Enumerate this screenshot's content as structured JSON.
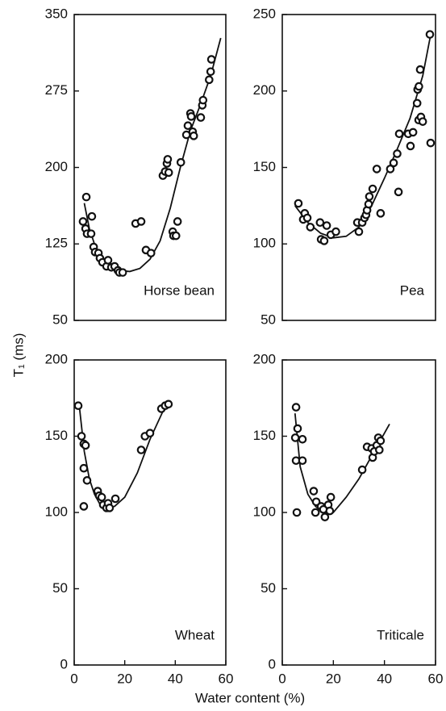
{
  "xlabel": "Water content (%)",
  "ylabel": "T₁ (ms)",
  "chart_data": [
    {
      "type": "scatter",
      "annotation": "Horse bean",
      "color": "#111",
      "xlim": [
        0,
        60
      ],
      "ylim": [
        50,
        350
      ],
      "yticks": [
        50,
        125,
        200,
        275,
        350
      ],
      "x": [
        4.8,
        3.5,
        4.5,
        5.1,
        7,
        6.7,
        7.7,
        8.3,
        9.6,
        10.2,
        11.2,
        12.8,
        13.4,
        14.7,
        16,
        17.3,
        17.9,
        19.2,
        24.3,
        26.5,
        28.4,
        30.4,
        35.1,
        36,
        36.7,
        37,
        37.4,
        39,
        39.3,
        40.3,
        40.9,
        42.2,
        44.4,
        45,
        46,
        46.3,
        46.9,
        47.3,
        50.1,
        50.7,
        51,
        53.4,
        54,
        54.3
      ],
      "y": [
        171,
        147,
        140,
        135,
        152,
        135,
        122,
        117,
        116,
        111,
        107,
        103,
        109,
        102,
        103,
        99,
        97,
        97,
        145,
        147,
        119,
        116,
        192,
        196,
        204,
        208,
        195,
        137,
        133,
        133,
        147,
        205,
        232,
        241,
        253,
        250,
        235,
        231,
        249,
        261,
        266,
        286,
        294,
        306
      ],
      "fit": {
        "x": [
          4,
          6,
          8,
          10,
          14,
          18,
          22,
          26,
          30,
          34,
          38,
          42,
          46,
          50,
          54,
          58
        ],
        "y": [
          165,
          140,
          125,
          115,
          104,
          99,
          98,
          101,
          110,
          128,
          160,
          200,
          236,
          262,
          290,
          327
        ]
      }
    },
    {
      "type": "scatter",
      "annotation": "Pea",
      "color": "#111",
      "xlim": [
        0,
        60
      ],
      "ylim": [
        50,
        250
      ],
      "yticks": [
        50,
        100,
        150,
        200,
        250
      ],
      "x": [
        6.3,
        8.2,
        8.8,
        9.8,
        11,
        14.8,
        15.2,
        16.4,
        17.4,
        19,
        21,
        29.4,
        30,
        31.3,
        32.2,
        32.8,
        33.2,
        33.8,
        34.1,
        35.4,
        37,
        38.5,
        42.3,
        43.6,
        45,
        45.5,
        45.8,
        49.3,
        50.2,
        51.2,
        52.8,
        53,
        53.5,
        54,
        53.4,
        54.3,
        55,
        58.1,
        57.8
      ],
      "y": [
        126.5,
        116,
        120,
        117,
        111,
        114,
        103,
        102,
        112,
        106,
        108,
        114,
        108,
        114,
        117,
        119,
        122,
        126,
        131,
        136,
        149,
        120,
        149,
        153,
        159,
        134,
        172,
        172,
        164,
        173,
        192,
        201,
        203,
        214,
        181,
        183,
        180,
        166,
        237
      ],
      "fit": {
        "x": [
          5,
          10,
          15,
          20,
          25,
          30,
          35,
          40,
          45,
          50,
          55,
          58
        ],
        "y": [
          125,
          114,
          107,
          104,
          105,
          111,
          125,
          143,
          162,
          182,
          210,
          236
        ]
      }
    },
    {
      "type": "scatter",
      "annotation": "Wheat",
      "color": "#111",
      "xlim": [
        0,
        60
      ],
      "ylim": [
        0,
        200
      ],
      "yticks": [
        0,
        50,
        100,
        150,
        200
      ],
      "xticks": [
        0,
        20,
        40,
        60
      ],
      "x": [
        1.6,
        2.9,
        3.8,
        4.5,
        3.8,
        5.1,
        3.8,
        9.3,
        9.9,
        10.9,
        11.5,
        12.8,
        13.4,
        14,
        16.3,
        26.5,
        28,
        30,
        34.5,
        36,
        37.3
      ],
      "y": [
        170,
        150,
        145,
        144,
        129,
        121,
        104,
        114,
        111,
        110,
        105,
        103,
        106,
        103,
        109,
        141,
        150,
        152,
        168,
        170,
        171
      ],
      "fit": {
        "x": [
          2,
          4,
          6,
          8,
          10,
          13,
          16,
          20,
          25,
          30,
          35,
          38
        ],
        "y": [
          170,
          140,
          122,
          112,
          106,
          103,
          104,
          110,
          126,
          148,
          166,
          172
        ]
      }
    },
    {
      "type": "scatter",
      "annotation": "Triticale",
      "color": "#111",
      "xlim": [
        0,
        60
      ],
      "ylim": [
        0,
        200
      ],
      "yticks": [
        0,
        50,
        100,
        150,
        200
      ],
      "xticks": [
        0,
        20,
        40,
        60
      ],
      "x": [
        5.4,
        6,
        5.1,
        7.9,
        5.4,
        7.9,
        5.7,
        12.3,
        13.3,
        15.2,
        13,
        16.1,
        16.7,
        18,
        19,
        18.6,
        31.3,
        33.2,
        35,
        35.4,
        36,
        37,
        37.6,
        38,
        38.5
      ],
      "y": [
        169,
        155,
        149,
        148,
        134,
        134,
        100,
        114,
        107,
        104,
        100,
        102,
        97,
        105,
        110,
        101,
        128,
        143,
        142,
        136,
        140,
        144,
        149,
        141,
        147
      ],
      "fit": {
        "x": [
          5,
          7,
          10,
          13,
          16,
          20,
          25,
          30,
          35,
          40,
          42
        ],
        "y": [
          165,
          130,
          112,
          104,
          100,
          100,
          110,
          122,
          137,
          152,
          158
        ]
      }
    }
  ]
}
